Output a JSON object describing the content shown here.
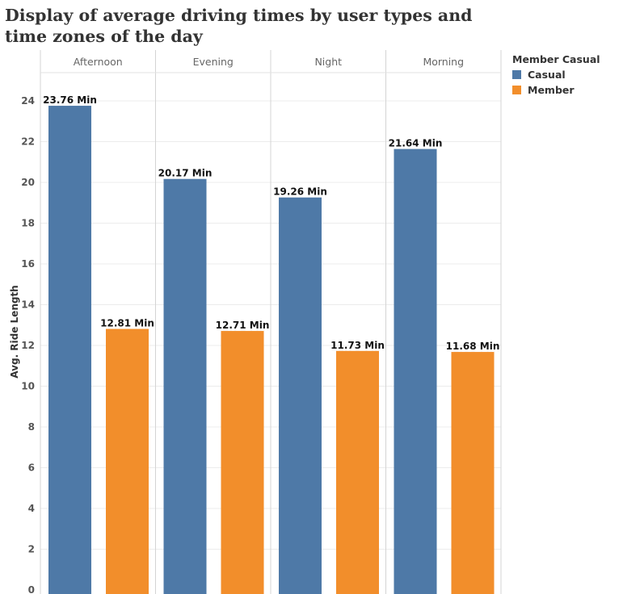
{
  "chart_data": {
    "type": "bar",
    "title": "Display of average driving times by user types and time zones of the day",
    "ylabel": "Avg. Ride Length",
    "xlabel": "",
    "categories": [
      "Afternoon",
      "Evening",
      "Night",
      "Morning"
    ],
    "series": [
      {
        "name": "Casual",
        "color": "#4e79a7",
        "values": [
          23.76,
          20.17,
          19.26,
          21.64
        ]
      },
      {
        "name": "Member",
        "color": "#f28e2b",
        "values": [
          12.81,
          12.71,
          11.73,
          11.68
        ]
      }
    ],
    "data_label_suffix": " Min",
    "ylim": [
      0,
      24.5
    ],
    "yticks": [
      0,
      2,
      4,
      6,
      8,
      10,
      12,
      14,
      16,
      18,
      20,
      22,
      24
    ],
    "grid": true,
    "legend": {
      "title": "Member Casual",
      "position": "right"
    }
  }
}
